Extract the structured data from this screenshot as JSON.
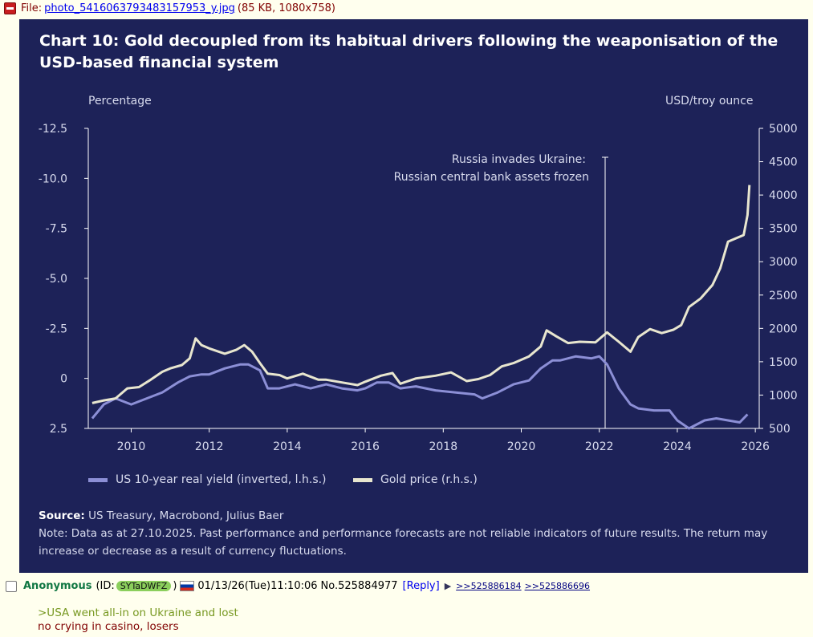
{
  "file": {
    "label": "File:",
    "name": "photo_5416063793483157953_y.jpg",
    "meta": "(85 KB, 1080x758)"
  },
  "chart": {
    "title": "Chart 10: Gold decoupled from its habitual drivers following the weaponisation of the USD-based financial system",
    "left_unit": "Percentage",
    "right_unit": "USD/troy ounce",
    "annotation_line1": "Russia invades Ukraine:",
    "annotation_line2": "Russian central bank assets frozen",
    "source_label": "Source:",
    "source_text": " US Treasury, Macrobond, Julius Baer",
    "note": "Note: Data as at 27.10.2025. Past performance and performance forecasts are not reliable indicators of future results. The return may increase or decrease as a result of currency fluctuations.",
    "colors": {
      "background": "#1d2258",
      "yield": "#8c8fd6",
      "gold": "#e8e6cf"
    }
  },
  "chart_data": {
    "type": "line",
    "title": "Chart 10: Gold decoupled from its habitual drivers following the weaponisation of the USD-based financial system",
    "x_ticks": [
      "2010",
      "2012",
      "2014",
      "2016",
      "2018",
      "2020",
      "2022",
      "2024",
      "2026"
    ],
    "xlim": [
      2008.9,
      2026.1
    ],
    "left_axis": {
      "label": "Percentage",
      "ticks": [
        "-12.5",
        "-10.0",
        "-7.5",
        "-5.0",
        "-2.5",
        "0",
        "2.5"
      ],
      "ylim": [
        2.5,
        -12.5
      ],
      "inverted": true
    },
    "right_axis": {
      "label": "USD/troy ounce",
      "ticks": [
        "500",
        "1000",
        "1500",
        "2000",
        "2500",
        "3000",
        "3500",
        "4000",
        "4500",
        "5000"
      ],
      "ylim": [
        500,
        5000
      ]
    },
    "annotation": {
      "x": 2022.15,
      "text": "Russia invades Ukraine: Russian central bank assets frozen"
    },
    "legend_position": "bottom-left",
    "series": [
      {
        "name": "US 10-year real yield (inverted, l.h.s.)",
        "axis": "left",
        "x": [
          2009.0,
          2009.3,
          2009.6,
          2010.0,
          2010.4,
          2010.8,
          2011.2,
          2011.5,
          2011.8,
          2012.0,
          2012.4,
          2012.8,
          2013.0,
          2013.3,
          2013.5,
          2013.8,
          2014.2,
          2014.6,
          2015.0,
          2015.4,
          2015.8,
          2016.0,
          2016.3,
          2016.6,
          2016.9,
          2017.3,
          2017.8,
          2018.3,
          2018.8,
          2019.0,
          2019.4,
          2019.8,
          2020.2,
          2020.5,
          2020.8,
          2021.0,
          2021.4,
          2021.8,
          2022.0,
          2022.2,
          2022.5,
          2022.8,
          2023.0,
          2023.4,
          2023.8,
          2024.0,
          2024.3,
          2024.7,
          2025.0,
          2025.3,
          2025.6,
          2025.8
        ],
        "y": [
          2.0,
          1.3,
          1.0,
          1.3,
          1.0,
          0.7,
          0.2,
          -0.1,
          -0.2,
          -0.2,
          -0.5,
          -0.7,
          -0.7,
          -0.4,
          0.5,
          0.5,
          0.3,
          0.5,
          0.3,
          0.5,
          0.6,
          0.5,
          0.2,
          0.2,
          0.5,
          0.4,
          0.6,
          0.7,
          0.8,
          1.0,
          0.7,
          0.3,
          0.1,
          -0.5,
          -0.9,
          -0.9,
          -1.1,
          -1.0,
          -1.1,
          -0.7,
          0.5,
          1.3,
          1.5,
          1.6,
          1.6,
          2.1,
          2.5,
          2.1,
          2.0,
          2.1,
          2.2,
          1.8
        ]
      },
      {
        "name": "Gold price (r.h.s.)",
        "axis": "right",
        "x": [
          2009.0,
          2009.3,
          2009.6,
          2009.9,
          2010.2,
          2010.5,
          2010.8,
          2011.0,
          2011.3,
          2011.5,
          2011.65,
          2011.8,
          2012.0,
          2012.4,
          2012.7,
          2012.9,
          2013.1,
          2013.3,
          2013.5,
          2013.8,
          2014.0,
          2014.4,
          2014.8,
          2015.0,
          2015.4,
          2015.8,
          2016.0,
          2016.4,
          2016.7,
          2016.9,
          2017.3,
          2017.8,
          2018.2,
          2018.6,
          2018.9,
          2019.2,
          2019.5,
          2019.8,
          2020.2,
          2020.5,
          2020.65,
          2020.9,
          2021.2,
          2021.5,
          2021.9,
          2022.2,
          2022.5,
          2022.8,
          2023.0,
          2023.3,
          2023.6,
          2023.9,
          2024.1,
          2024.3,
          2024.6,
          2024.9,
          2025.1,
          2025.3,
          2025.5,
          2025.7,
          2025.8,
          2025.85
        ],
        "y": [
          880,
          920,
          950,
          1100,
          1120,
          1230,
          1350,
          1400,
          1450,
          1550,
          1850,
          1750,
          1700,
          1620,
          1680,
          1750,
          1650,
          1480,
          1320,
          1300,
          1250,
          1320,
          1230,
          1230,
          1190,
          1150,
          1200,
          1290,
          1330,
          1170,
          1250,
          1290,
          1340,
          1210,
          1240,
          1300,
          1430,
          1480,
          1580,
          1730,
          1970,
          1880,
          1780,
          1800,
          1790,
          1940,
          1800,
          1650,
          1870,
          1990,
          1930,
          1980,
          2050,
          2320,
          2450,
          2650,
          2900,
          3300,
          3350,
          3400,
          3700,
          4150
        ]
      }
    ]
  },
  "legend": {
    "yield_label": "US 10-year real yield (inverted, l.h.s.)",
    "gold_label": "Gold price (r.h.s.)"
  },
  "post": {
    "author": "Anonymous",
    "id_prefix": "(ID:",
    "id": "SYTaDWFZ",
    "id_suffix": ")",
    "datetime": "01/13/26(Tue)11:10:06",
    "number": "No.525884977",
    "reply_label": "[Reply]",
    "backlink1": ">>525886184",
    "backlink2": ">>525886696",
    "greentext": ">USA went all-in on Ukraine and lost",
    "text": "no crying in casino, losers"
  }
}
